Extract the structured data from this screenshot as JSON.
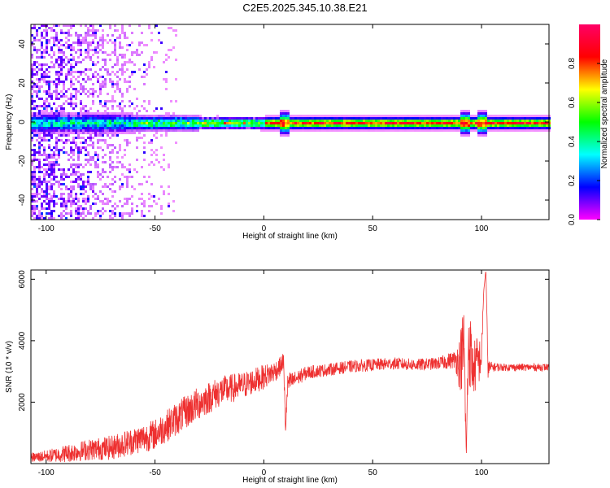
{
  "title": "C2E5.2025.345.10.38.E21",
  "chart_data": [
    {
      "type": "heatmap",
      "xlabel": "Height of straight line (km)",
      "ylabel": "Frequency (Hz)",
      "xlim": [
        -107,
        131
      ],
      "ylim": [
        -50,
        50
      ],
      "xticks": [
        -100,
        -50,
        0,
        50,
        100
      ],
      "yticks": [
        -40,
        -20,
        0,
        20,
        40
      ],
      "description_of_ridge": {
        "center_frequency": 0,
        "noise_region_x": [
          -107,
          -40
        ],
        "ridge_segments": [
          {
            "x": [
              -107,
              -60
            ],
            "half_width_hz": 5,
            "peak_amplitude": 0.45
          },
          {
            "x": [
              -60,
              -30
            ],
            "half_width_hz": 4,
            "peak_amplitude": 0.6
          },
          {
            "x": [
              -30,
              0
            ],
            "half_width_hz": 3,
            "peak_amplitude": 0.75
          },
          {
            "x": [
              0,
              131
            ],
            "half_width_hz": 3,
            "peak_amplitude": 0.95
          }
        ],
        "bumps_x": [
          9,
          92,
          100
        ]
      },
      "colorbar": {
        "label": "Normalized spectral amplitude",
        "ticks": [
          0.0,
          0.2,
          0.4,
          0.6,
          0.8
        ],
        "range": [
          0,
          1
        ],
        "colors": [
          "#ff00ff",
          "#0000ff",
          "#00ffff",
          "#00ff00",
          "#ffff00",
          "#ff0000",
          "#ff0066"
        ]
      },
      "grid": false
    },
    {
      "type": "line",
      "xlabel": "Height of straight line (km)",
      "ylabel": "SNR (10 * v/v)",
      "xlim": [
        -107,
        131
      ],
      "ylim": [
        0,
        6300
      ],
      "xticks": [
        -100,
        -50,
        0,
        50,
        100
      ],
      "yticks": [
        2000,
        4000,
        6000
      ],
      "series": [
        {
          "color": "#ee3030",
          "x": [
            -107,
            -100,
            -90,
            -80,
            -70,
            -60,
            -50,
            -40,
            -30,
            -20,
            -10,
            0,
            5,
            8,
            9,
            10,
            11,
            15,
            20,
            30,
            40,
            50,
            60,
            70,
            80,
            88,
            90,
            92,
            93,
            94,
            96,
            98,
            100,
            101,
            102,
            103,
            105,
            110,
            120,
            131
          ],
          "y": [
            150,
            180,
            250,
            350,
            400,
            600,
            800,
            1300,
            1800,
            2200,
            2400,
            2700,
            2900,
            3100,
            3300,
            1100,
            2500,
            2700,
            2900,
            3000,
            3100,
            3150,
            3200,
            3150,
            3200,
            3300,
            3000,
            3400,
            200,
            3600,
            2800,
            3000,
            3300,
            5600,
            6300,
            3000,
            3100,
            3100,
            3100,
            3100
          ],
          "noise_amplitude": [
            150,
            200,
            300,
            350,
            400,
            450,
            500,
            550,
            550,
            500,
            450,
            400,
            350,
            300,
            300,
            300,
            350,
            250,
            220,
            200,
            200,
            200,
            200,
            200,
            200,
            300,
            900,
            1500,
            0,
            1500,
            900,
            900,
            600,
            0,
            0,
            300,
            150,
            120,
            120,
            120
          ]
        }
      ],
      "grid": false
    }
  ]
}
